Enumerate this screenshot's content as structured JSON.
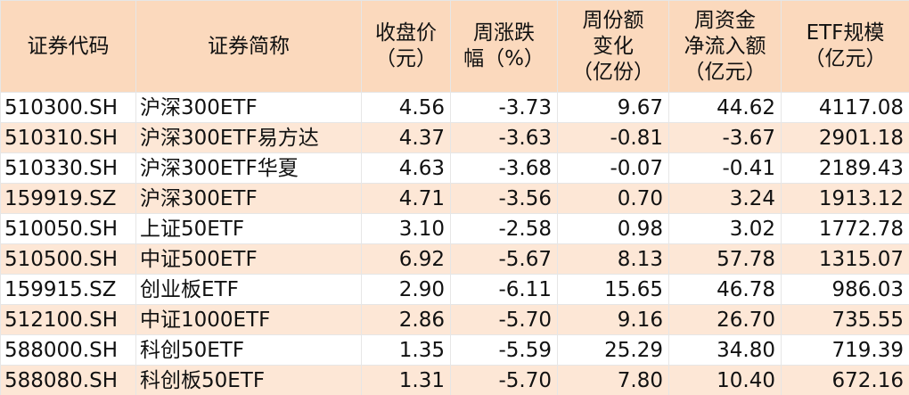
{
  "table": {
    "header": [
      [
        "证券代码"
      ],
      [
        "证券简称"
      ],
      [
        "收盘价",
        "（元）"
      ],
      [
        "周涨跌",
        "幅（%）"
      ],
      [
        "周份额",
        "变化",
        "（亿份）"
      ],
      [
        "周资金",
        "净流入额",
        "（亿元）"
      ],
      [
        "ETF规模",
        "（亿元）"
      ]
    ],
    "rows": [
      [
        "510300.SH",
        "沪深300ETF",
        "4.56",
        "-3.73",
        "9.67",
        "44.62",
        "4117.08"
      ],
      [
        "510310.SH",
        "沪深300ETF易方达",
        "4.37",
        "-3.63",
        "-0.81",
        "-3.67",
        "2901.18"
      ],
      [
        "510330.SH",
        "沪深300ETF华夏",
        "4.63",
        "-3.68",
        "-0.07",
        "-0.41",
        "2189.43"
      ],
      [
        "159919.SZ",
        "沪深300ETF",
        "4.71",
        "-3.56",
        "0.70",
        "3.24",
        "1913.12"
      ],
      [
        "510050.SH",
        "上证50ETF",
        "3.10",
        "-2.58",
        "0.98",
        "3.02",
        "1772.78"
      ],
      [
        "510500.SH",
        "中证500ETF",
        "6.92",
        "-5.67",
        "8.13",
        "57.78",
        "1315.07"
      ],
      [
        "159915.SZ",
        "创业板ETF",
        "2.90",
        "-6.11",
        "15.65",
        "46.78",
        "986.03"
      ],
      [
        "512100.SH",
        "中证1000ETF",
        "2.86",
        "-5.70",
        "9.16",
        "26.70",
        "735.55"
      ],
      [
        "588000.SH",
        "科创50ETF",
        "1.35",
        "-5.59",
        "25.29",
        "34.80",
        "719.39"
      ],
      [
        "588080.SH",
        "科创板50ETF",
        "1.31",
        "-5.70",
        "7.80",
        "10.40",
        "672.16"
      ]
    ]
  }
}
